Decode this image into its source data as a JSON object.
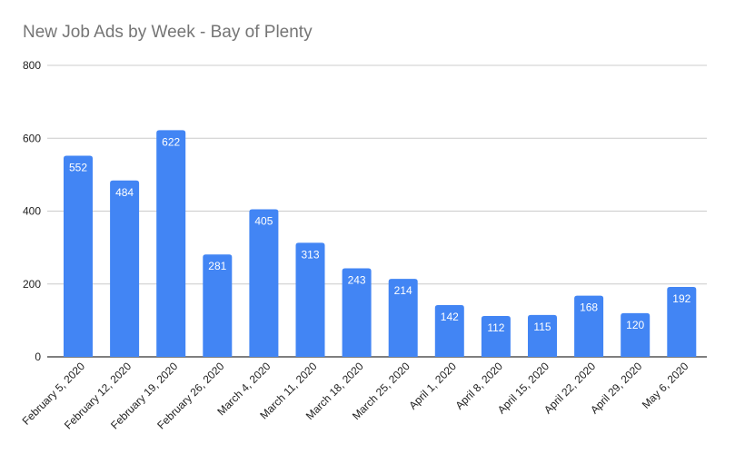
{
  "chart_data": {
    "type": "bar",
    "title": "New Job Ads by Week - Bay of Plenty",
    "xlabel": "",
    "ylabel": "",
    "ylim": [
      0,
      800
    ],
    "yticks": [
      0,
      200,
      400,
      600,
      800
    ],
    "grid": true,
    "legend": "none",
    "categories": [
      "February 5, 2020",
      "February 12, 2020",
      "February 19, 2020",
      "February 26, 2020",
      "March 4, 2020",
      "March 11, 2020",
      "March 18, 2020",
      "March 25, 2020",
      "April 1, 2020",
      "April 8, 2020",
      "April 15, 2020",
      "April 22, 2020",
      "April 29, 2020",
      "May 6, 2020"
    ],
    "values": [
      552,
      484,
      622,
      281,
      405,
      313,
      243,
      214,
      142,
      112,
      115,
      168,
      120,
      192
    ],
    "colors": {
      "bar": "#4285f4",
      "grid": "#cccccc",
      "axis": "#333333",
      "title": "#757575",
      "label": "#ffffff",
      "tick": "#222222"
    }
  }
}
